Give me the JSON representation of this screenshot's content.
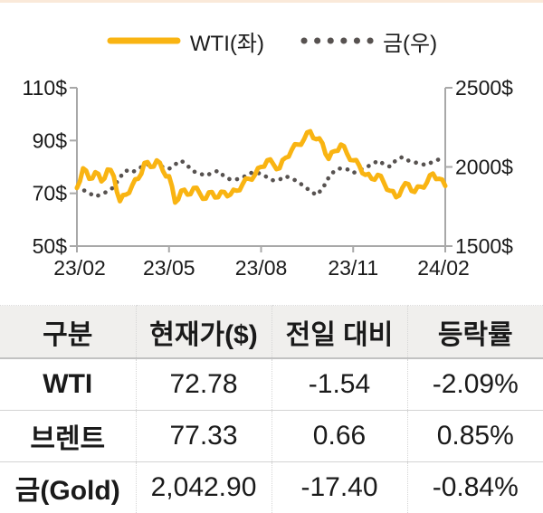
{
  "legend": {
    "wti_label": "WTI(좌)",
    "gold_label": "금(우)"
  },
  "colors": {
    "wti_yellow": "#F9B412",
    "gold_gray": "#575250",
    "axis_gray": "#A8A8A8",
    "header_bg": "#F0EFED",
    "top_border": "#FAE9D9",
    "text": "#1A1A1A"
  },
  "chart_data": {
    "type": "line",
    "title": "",
    "grid": false,
    "legend_position": "top",
    "x_ticks": [
      "23/02",
      "23/05",
      "23/08",
      "23/11",
      "24/02"
    ],
    "y_left": {
      "min": 50,
      "max": 110,
      "ticks": [
        "110$",
        "90$",
        "70$",
        "50$"
      ]
    },
    "y_right": {
      "min": 1500,
      "max": 2500,
      "ticks": [
        "2500$",
        "2000$",
        "1500$"
      ]
    },
    "series": [
      {
        "name": "WTI(좌)",
        "axis": "left",
        "line_style": "solid",
        "color": "#F9B412",
        "unit": "$",
        "values": [
          72,
          79.5,
          75.5,
          78,
          74.5,
          79,
          76.5,
          67,
          69.5,
          73,
          75.5,
          81.5,
          80,
          82.5,
          78.5,
          76.5,
          66.5,
          71,
          69.5,
          72,
          70,
          68,
          70.5,
          68.5,
          70.5,
          69.5,
          71,
          73.5,
          75.5,
          77,
          80,
          82.5,
          81,
          79.5,
          83.5,
          86.5,
          88.5,
          90.5,
          93.5,
          90.5,
          89,
          83,
          86,
          88.5,
          85,
          82.5,
          80.5,
          77,
          75.5,
          77,
          74,
          71,
          68.5,
          72,
          73.5,
          70.5,
          72.5,
          74,
          77.5,
          75.5,
          72.8
        ]
      },
      {
        "name": "금(우)",
        "axis": "right",
        "line_style": "dotted",
        "color": "#575250",
        "unit": "$",
        "values": [
          1870,
          1855,
          1835,
          1812,
          1828,
          1845,
          1872,
          1935,
          1978,
          1965,
          1990,
          2008,
          2018,
          2028,
          1998,
          1988,
          2016,
          2040,
          2008,
          1972,
          1958,
          1944,
          1962,
          1976,
          1940,
          1920,
          1922,
          1932,
          1958,
          1968,
          1956,
          1935,
          1914,
          1920,
          1942,
          1926,
          1908,
          1876,
          1850,
          1822,
          1862,
          1932,
          1978,
          1992,
          1986,
          1962,
          1978,
          1999,
          2012,
          2040,
          2018,
          2002,
          2044,
          2062,
          2040,
          2030,
          2018,
          2012,
          2034,
          2048,
          2043
        ]
      }
    ]
  },
  "table": {
    "headers": [
      "구분",
      "현재가($)",
      "전일 대비",
      "등락률"
    ],
    "rows": [
      [
        "WTI",
        "72.78",
        "-1.54",
        "-2.09%"
      ],
      [
        "브렌트",
        "77.33",
        "0.66",
        "0.85%"
      ],
      [
        "금(Gold)",
        "2,042.90",
        "-17.40",
        "-0.84%"
      ]
    ]
  }
}
